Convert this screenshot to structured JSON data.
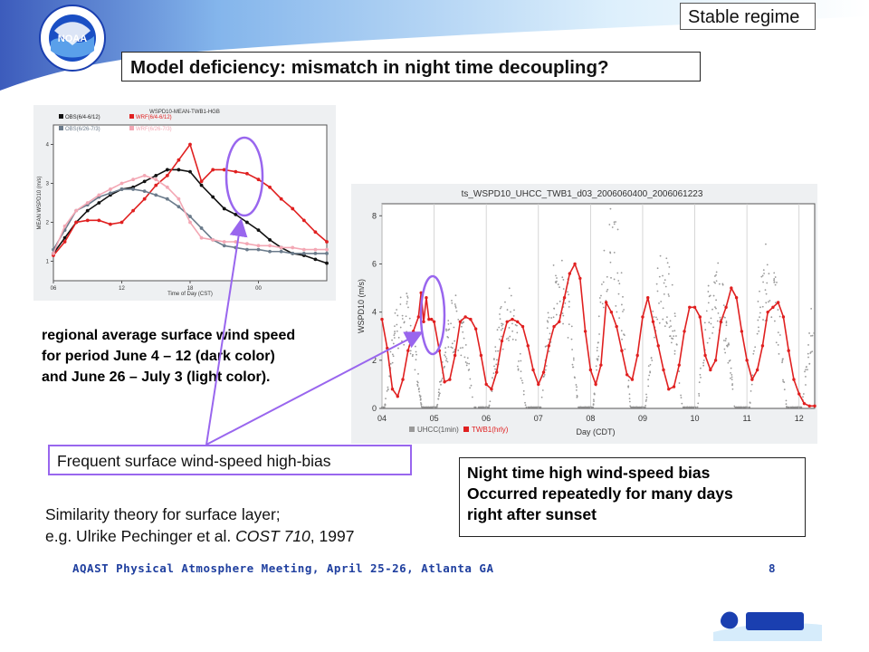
{
  "header": {
    "regime_label": "Stable regime",
    "title": "Model deficiency: mismatch in night time decoupling?"
  },
  "logo": {
    "text": "NOAA"
  },
  "left_description": [
    "regional average surface wind speed",
    "for period June 4 – 12 (dark color)",
    "and June 26 – July 3 (light color)."
  ],
  "callout": "Frequent surface wind-speed high-bias",
  "night_box": [
    "Night time high wind-speed bias",
    "Occurred repeatedly for many days",
    "right after sunset"
  ],
  "theory": {
    "line1": "Similarity theory for surface layer;",
    "line2_prefix": " e.g. Ulrike Pechinger et al. ",
    "line2_italic": "COST 710",
    "line2_suffix": ", 1997"
  },
  "footer": {
    "meeting": "AQAST Physical Atmosphere Meeting, April 25-26, Atlanta GA",
    "page": "8"
  },
  "colors": {
    "accent_purple": "#9966ee",
    "footer_blue": "#1f3f9f",
    "wrf_red": "#e02020"
  },
  "chart_data": [
    {
      "type": "line",
      "title": "WSPD10-MEAN-TWB1-HGB",
      "xlabel": "Time of Day (CST)",
      "ylabel": "MEAN WSPD10 (m/s)",
      "x_ticks": [
        "06",
        "12",
        "18",
        "00"
      ],
      "y_ticks": [
        "1",
        "2",
        "3",
        "4"
      ],
      "xlim": [
        6,
        30
      ],
      "ylim": [
        0.5,
        4.5
      ],
      "legend": [
        "OBS(6/4-6/12)",
        "WRF(6/4-6/12)",
        "OBS(6/26-7/3)",
        "WRF(6/26-7/3)"
      ],
      "x": [
        6,
        7,
        8,
        9,
        10,
        11,
        12,
        13,
        14,
        15,
        16,
        17,
        18,
        19,
        20,
        21,
        22,
        23,
        24,
        25,
        26,
        27,
        28,
        29,
        30
      ],
      "series": [
        {
          "name": "OBS(6/4-6/12)",
          "color": "#111111",
          "values": [
            1.2,
            1.6,
            2.0,
            2.3,
            2.5,
            2.7,
            2.85,
            2.9,
            3.05,
            3.2,
            3.35,
            3.35,
            3.3,
            2.95,
            2.65,
            2.35,
            2.2,
            2.0,
            1.8,
            1.55,
            1.35,
            1.2,
            1.15,
            1.05,
            0.95
          ]
        },
        {
          "name": "WRF(6/4-6/12)",
          "color": "#e02020",
          "values": [
            1.15,
            1.5,
            2.0,
            2.05,
            2.05,
            1.95,
            2.0,
            2.3,
            2.6,
            2.95,
            3.2,
            3.6,
            4.0,
            3.05,
            3.35,
            3.35,
            3.3,
            3.25,
            3.1,
            2.9,
            2.6,
            2.35,
            2.05,
            1.75,
            1.5
          ]
        },
        {
          "name": "OBS(6/26-7/3)",
          "color": "#6b7b8b",
          "values": [
            1.3,
            1.8,
            2.3,
            2.45,
            2.65,
            2.75,
            2.85,
            2.85,
            2.8,
            2.7,
            2.6,
            2.4,
            2.15,
            1.85,
            1.55,
            1.4,
            1.35,
            1.3,
            1.3,
            1.25,
            1.25,
            1.2,
            1.2,
            1.2,
            1.2
          ]
        },
        {
          "name": "WRF(6/26-7/3)",
          "color": "#f3a7b4",
          "values": [
            1.2,
            1.9,
            2.3,
            2.5,
            2.7,
            2.85,
            3.0,
            3.1,
            3.2,
            3.1,
            2.9,
            2.6,
            2.0,
            1.6,
            1.55,
            1.5,
            1.5,
            1.45,
            1.4,
            1.4,
            1.35,
            1.35,
            1.3,
            1.3,
            1.3
          ]
        }
      ]
    },
    {
      "type": "line",
      "title": "ts_WSPD10_UHCC_TWB1_d03_2006060400_2006061223",
      "xlabel": "Day (CDT)",
      "ylabel": "WSPD10 (m/s)",
      "x_ticks": [
        "04",
        "05",
        "06",
        "07",
        "08",
        "09",
        "10",
        "11",
        "12"
      ],
      "y_ticks": [
        "0",
        "2",
        "4",
        "6",
        "8"
      ],
      "xlim": [
        4,
        12.3
      ],
      "ylim": [
        0,
        8.5
      ],
      "legend": [
        "UHCC(1min)",
        "TWB1(hrly)"
      ],
      "series": [
        {
          "name": "UHCC(1min)",
          "color": "#999999",
          "style": "scatter-dense"
        },
        {
          "name": "TWB1(hrly)",
          "color": "#e02020",
          "style": "line-markers",
          "x": [
            4.0,
            4.1,
            4.2,
            4.3,
            4.4,
            4.5,
            4.6,
            4.7,
            4.75,
            4.8,
            4.85,
            4.9,
            4.95,
            5.0,
            5.1,
            5.2,
            5.3,
            5.4,
            5.5,
            5.6,
            5.7,
            5.8,
            5.9,
            6.0,
            6.1,
            6.2,
            6.3,
            6.4,
            6.5,
            6.6,
            6.7,
            6.8,
            6.9,
            7.0,
            7.1,
            7.2,
            7.3,
            7.4,
            7.5,
            7.6,
            7.7,
            7.8,
            7.9,
            8.0,
            8.1,
            8.2,
            8.3,
            8.4,
            8.5,
            8.6,
            8.7,
            8.8,
            8.9,
            9.0,
            9.1,
            9.2,
            9.3,
            9.4,
            9.5,
            9.6,
            9.7,
            9.8,
            9.9,
            10.0,
            10.1,
            10.2,
            10.3,
            10.4,
            10.5,
            10.6,
            10.7,
            10.8,
            10.9,
            11.0,
            11.1,
            11.2,
            11.3,
            11.4,
            11.5,
            11.6,
            11.7,
            11.8,
            11.9,
            12.0,
            12.1,
            12.2,
            12.3
          ],
          "values": [
            3.7,
            2.5,
            0.8,
            0.5,
            1.2,
            2.4,
            3.2,
            3.8,
            4.8,
            3.6,
            4.6,
            3.7,
            3.7,
            3.6,
            2.4,
            1.1,
            1.2,
            2.2,
            3.6,
            3.8,
            3.7,
            3.3,
            2.2,
            1.0,
            0.8,
            1.5,
            2.8,
            3.6,
            3.7,
            3.6,
            3.4,
            2.6,
            1.6,
            1.0,
            1.5,
            2.6,
            3.4,
            3.6,
            4.6,
            5.6,
            6.0,
            5.4,
            3.2,
            1.6,
            1.0,
            1.8,
            4.4,
            4.0,
            3.4,
            2.4,
            1.4,
            1.2,
            2.2,
            3.8,
            4.6,
            3.6,
            2.6,
            1.6,
            0.8,
            0.9,
            1.8,
            3.2,
            4.2,
            4.2,
            3.8,
            2.2,
            1.6,
            2.0,
            3.6,
            4.2,
            5.0,
            4.6,
            3.2,
            2.0,
            1.2,
            1.6,
            2.6,
            4.0,
            4.2,
            4.4,
            3.8,
            2.4,
            1.2,
            0.6,
            0.2,
            0.1,
            0.1
          ]
        }
      ]
    }
  ]
}
